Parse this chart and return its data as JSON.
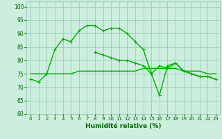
{
  "xlabel": "Humidité relative (%)",
  "background_color": "#cceedd",
  "grid_color": "#99ccbb",
  "line_color": "#00aa00",
  "x": [
    0,
    1,
    2,
    3,
    4,
    5,
    6,
    7,
    8,
    9,
    10,
    11,
    12,
    13,
    14,
    15,
    16,
    17,
    18,
    19,
    20,
    21,
    22,
    23
  ],
  "line_main": [
    73,
    72,
    75,
    84,
    88,
    87,
    91,
    93,
    93,
    91,
    92,
    92,
    90,
    87,
    84,
    75,
    78,
    77,
    79,
    76,
    75,
    74,
    74,
    73
  ],
  "line_descend": [
    null,
    null,
    75,
    null,
    null,
    87,
    null,
    null,
    83,
    82,
    81,
    80,
    80,
    79,
    78,
    75,
    null,
    null,
    null,
    null,
    null,
    null,
    null,
    null
  ],
  "line_flat": [
    75,
    75,
    75,
    75,
    75,
    75,
    76,
    76,
    76,
    76,
    76,
    76,
    76,
    76,
    77,
    77,
    77,
    77,
    77,
    76,
    76,
    76,
    75,
    75
  ],
  "line_dip": [
    null,
    null,
    null,
    null,
    null,
    null,
    null,
    null,
    null,
    null,
    null,
    null,
    null,
    null,
    null,
    75,
    67,
    78,
    79,
    76,
    75,
    74,
    74,
    73
  ],
  "ylim": [
    60,
    102
  ],
  "yticks": [
    60,
    65,
    70,
    75,
    80,
    85,
    90,
    95,
    100
  ],
  "xlim": [
    -0.5,
    23.5
  ]
}
